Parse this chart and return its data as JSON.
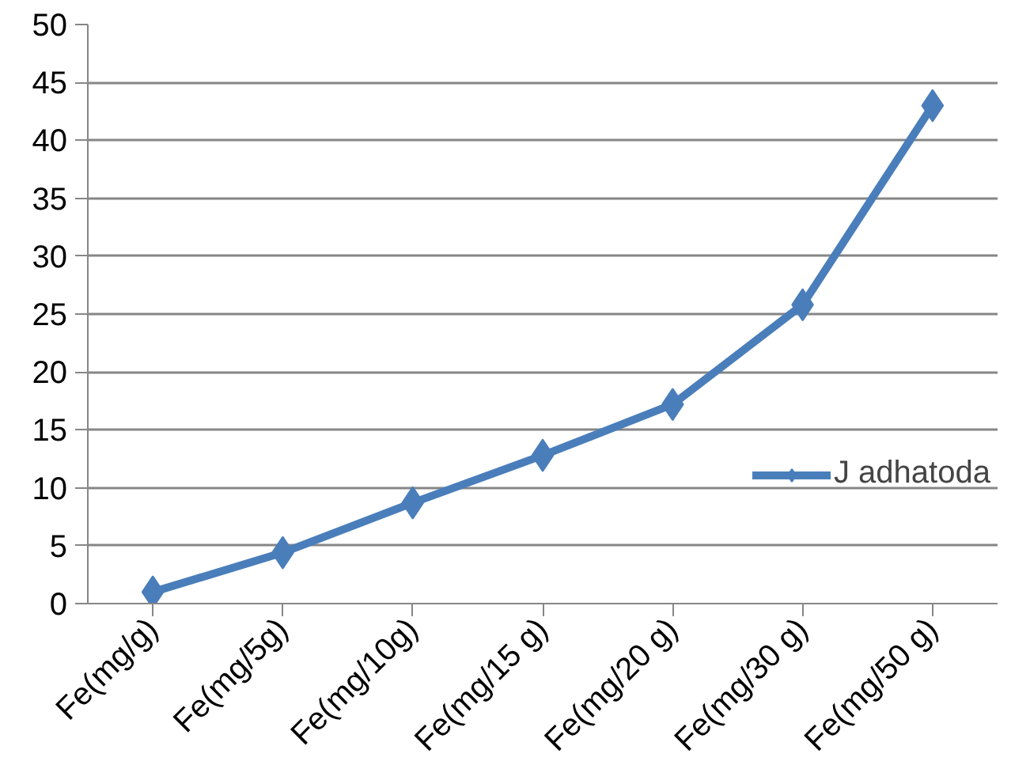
{
  "chart_data": {
    "type": "line",
    "categories": [
      "Fe(mg/g)",
      "Fe(mg/5g)",
      "Fe(mg/10g)",
      "Fe(mg/15 g)",
      "Fe(mg/20 g)",
      "Fe(mg/30 g)",
      "Fe(mg/50 g)"
    ],
    "series": [
      {
        "name": "J adhatoda",
        "color": "#4a7ebb",
        "values": [
          1.0,
          4.4,
          8.7,
          12.8,
          17.2,
          25.8,
          43.0
        ]
      }
    ],
    "ylim": [
      0,
      50
    ],
    "yticks": [
      0,
      5,
      10,
      15,
      20,
      25,
      30,
      35,
      40,
      45,
      50
    ],
    "grid": "y",
    "legend": "right",
    "marker": "diamond",
    "line_style": "solid"
  }
}
